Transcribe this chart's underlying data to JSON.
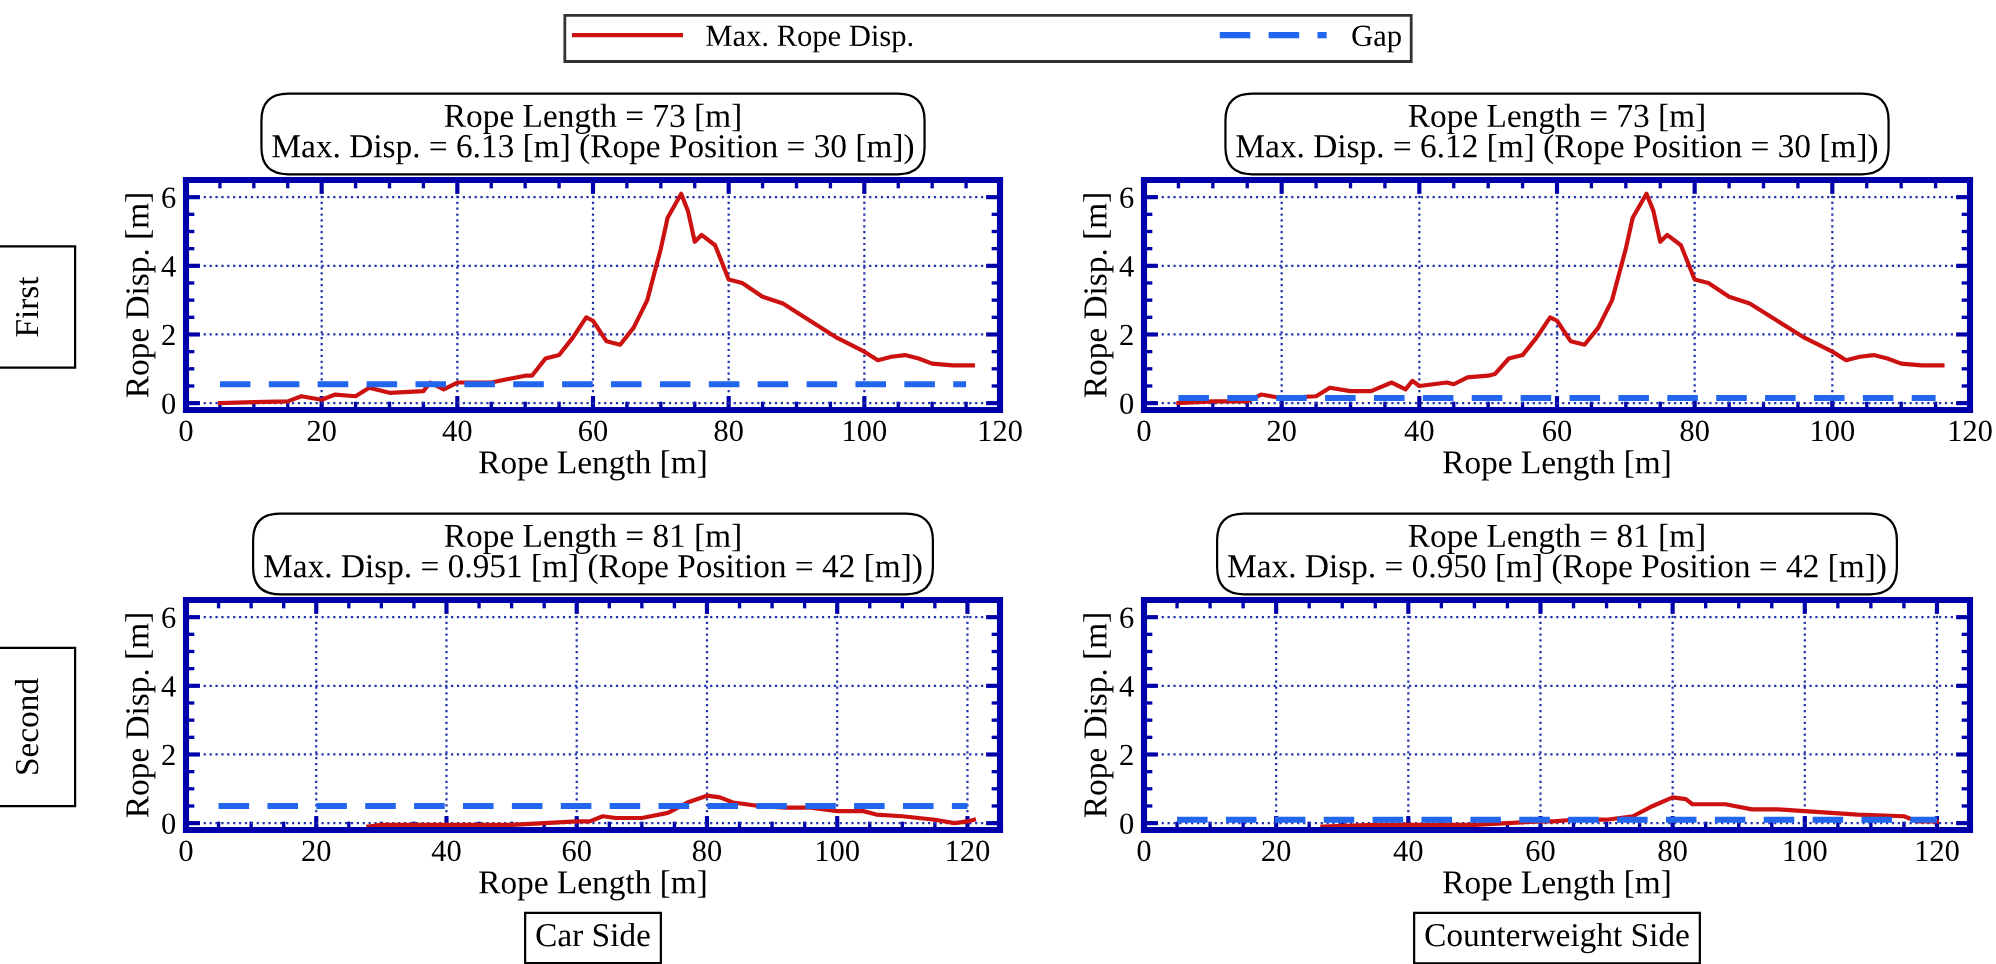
{
  "chart_data": [
    {
      "type": "line",
      "title": "Rope Length = 73 [m]\nMax. Disp. = 6.13 [m] (Rope Position = 30 [m])",
      "xlabel": "Rope Length [m]",
      "ylabel": "Rope Disp. [m]",
      "xlim": [
        0,
        120
      ],
      "ylim": [
        -0.2,
        6.5
      ],
      "xticks": [
        0,
        20,
        40,
        60,
        80,
        100,
        120
      ],
      "yticks": [
        0,
        2,
        4,
        6
      ],
      "grid": true,
      "legend": "top",
      "annotations": [
        "First"
      ],
      "series": [
        {
          "name": "Max. Rope Disp.",
          "color": "#cc1111",
          "line_style": "solid",
          "x": [
            5,
            10,
            15,
            17,
            20,
            22,
            25,
            27,
            30,
            35,
            36,
            38,
            40,
            45,
            50,
            51,
            53,
            55,
            57,
            59,
            60,
            62,
            64,
            66,
            68,
            70,
            71,
            73,
            74,
            75,
            76,
            78,
            80,
            82,
            85,
            88,
            92,
            96,
            100,
            102,
            104,
            106,
            108,
            110,
            113,
            116
          ],
          "values": [
            0,
            0.03,
            0.05,
            0.2,
            0.1,
            0.25,
            0.2,
            0.45,
            0.3,
            0.35,
            0.6,
            0.4,
            0.6,
            0.6,
            0.8,
            0.8,
            1.3,
            1.4,
            1.9,
            2.5,
            2.4,
            1.8,
            1.7,
            2.2,
            3.0,
            4.5,
            5.4,
            6.1,
            5.6,
            4.7,
            4.9,
            4.6,
            3.6,
            3.5,
            3.1,
            2.9,
            2.4,
            1.9,
            1.5,
            1.25,
            1.35,
            1.4,
            1.3,
            1.15,
            1.1,
            1.1
          ]
        },
        {
          "name": "Gap",
          "color": "#2266ee",
          "line_style": "dashed",
          "x": [
            5,
            115
          ],
          "values": [
            0.55,
            0.55
          ]
        }
      ]
    },
    {
      "type": "line",
      "title": "Rope Length = 73 [m]\nMax. Disp. = 6.12 [m] (Rope Position = 30 [m])",
      "xlabel": "Rope Length [m]",
      "ylabel": "Rope Disp. [m]",
      "xlim": [
        0,
        120
      ],
      "ylim": [
        -0.2,
        6.5
      ],
      "xticks": [
        0,
        20,
        40,
        60,
        80,
        100,
        120
      ],
      "yticks": [
        0,
        2,
        4,
        6
      ],
      "grid": true,
      "series": [
        {
          "color": "#cc1111",
          "line_style": "solid",
          "x": [
            5,
            10,
            15,
            17,
            20,
            25,
            27,
            30,
            33,
            36,
            38,
            39,
            40,
            44,
            45,
            47,
            50,
            51,
            53,
            55,
            57,
            59,
            60,
            62,
            64,
            66,
            68,
            70,
            71,
            73,
            74,
            75,
            76,
            78,
            80,
            82,
            85,
            88,
            92,
            96,
            100,
            102,
            104,
            106,
            108,
            110,
            113,
            116
          ],
          "values": [
            0,
            0.05,
            0.05,
            0.25,
            0.15,
            0.2,
            0.45,
            0.35,
            0.35,
            0.6,
            0.4,
            0.65,
            0.5,
            0.6,
            0.55,
            0.75,
            0.8,
            0.85,
            1.3,
            1.4,
            1.9,
            2.5,
            2.4,
            1.8,
            1.7,
            2.2,
            3.0,
            4.5,
            5.4,
            6.1,
            5.6,
            4.7,
            4.9,
            4.6,
            3.6,
            3.5,
            3.1,
            2.9,
            2.4,
            1.9,
            1.5,
            1.25,
            1.35,
            1.4,
            1.3,
            1.15,
            1.1,
            1.1
          ]
        },
        {
          "color": "#2266ee",
          "line_style": "dashed",
          "x": [
            5,
            115
          ],
          "values": [
            0.15,
            0.15
          ]
        }
      ]
    },
    {
      "type": "line",
      "title": "Rope Length = 81 [m]\nMax. Disp. = 0.951 [m] (Rope Position = 42 [m])",
      "xlabel": "Rope Length [m]",
      "ylabel": "Rope Disp. [m]",
      "xlim": [
        0,
        125
      ],
      "ylim": [
        -0.2,
        6.5
      ],
      "xticks": [
        0,
        20,
        40,
        60,
        80,
        100,
        120
      ],
      "yticks": [
        0,
        2,
        4,
        6
      ],
      "grid": true,
      "annotations": [
        "Second",
        "Car Side"
      ],
      "series": [
        {
          "color": "#cc1111",
          "line_style": "solid",
          "x": [
            28,
            30,
            40,
            50,
            55,
            60,
            62,
            64,
            66,
            70,
            74,
            77,
            80,
            82,
            84,
            88,
            92,
            96,
            100,
            104,
            106,
            110,
            115,
            118,
            120,
            121
          ],
          "values": [
            -0.1,
            -0.05,
            -0.05,
            -0.05,
            0,
            0.05,
            0.05,
            0.2,
            0.15,
            0.15,
            0.3,
            0.6,
            0.8,
            0.75,
            0.6,
            0.5,
            0.45,
            0.45,
            0.35,
            0.35,
            0.25,
            0.2,
            0.1,
            0,
            0.05,
            0.1
          ]
        },
        {
          "color": "#2266ee",
          "line_style": "dashed",
          "x": [
            5,
            120
          ],
          "values": [
            0.5,
            0.5
          ]
        }
      ]
    },
    {
      "type": "line",
      "title": "Rope Length = 81 [m]\nMax. Disp. = 0.950 [m] (Rope Position = 42 [m])",
      "xlabel": "Rope Length [m]",
      "ylabel": "Rope Disp. [m]",
      "xlim": [
        0,
        125
      ],
      "ylim": [
        -0.2,
        6.5
      ],
      "xticks": [
        0,
        20,
        40,
        60,
        80,
        100,
        120
      ],
      "yticks": [
        0,
        2,
        4,
        6
      ],
      "grid": true,
      "annotations": [
        "Counterweight Side"
      ],
      "series": [
        {
          "color": "#cc1111",
          "line_style": "solid",
          "x": [
            27,
            35,
            40,
            50,
            55,
            60,
            62,
            65,
            70,
            74,
            77,
            80,
            82,
            83,
            88,
            92,
            96,
            100,
            104,
            108,
            115,
            117,
            120
          ],
          "values": [
            -0.1,
            -0.05,
            -0.05,
            -0.05,
            0,
            0.05,
            0.05,
            0.1,
            0.1,
            0.2,
            0.5,
            0.75,
            0.7,
            0.55,
            0.55,
            0.4,
            0.4,
            0.35,
            0.3,
            0.25,
            0.2,
            0.05,
            0.05
          ]
        },
        {
          "color": "#2266ee",
          "line_style": "dashed",
          "x": [
            5,
            120
          ],
          "values": [
            0.1,
            0.1
          ]
        }
      ]
    }
  ]
}
